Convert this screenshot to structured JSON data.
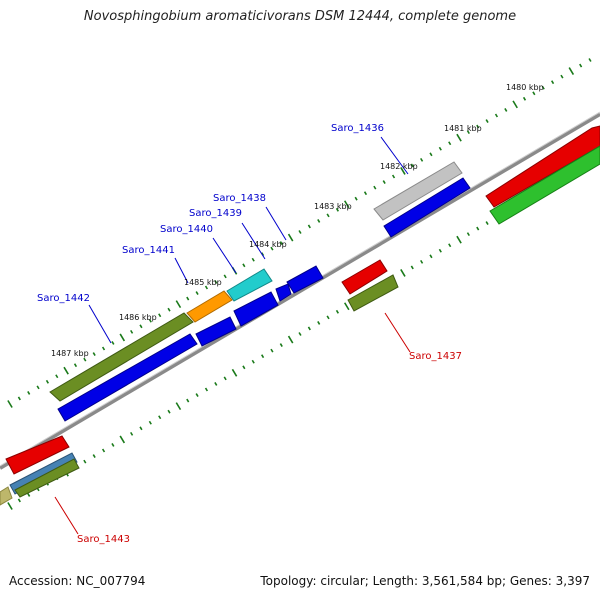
{
  "title": "Novosphingobium aromaticivorans DSM 12444, complete genome",
  "footer": {
    "accession": "Accession: NC_007794",
    "summary": "Topology: circular; Length: 3,561,584 bp; Genes: 3,397"
  },
  "scale_labels": [
    "1480 kbp",
    "1481 kbp",
    "1482 kbp",
    "1483 kbp",
    "1484 kbp",
    "1485 kbp",
    "1486 kbp",
    "1487 kbp"
  ],
  "gene_labels": [
    {
      "name": "Saro_1436",
      "strand": "plus"
    },
    {
      "name": "Saro_1438",
      "strand": "plus"
    },
    {
      "name": "Saro_1439",
      "strand": "plus"
    },
    {
      "name": "Saro_1440",
      "strand": "plus"
    },
    {
      "name": "Saro_1441",
      "strand": "plus"
    },
    {
      "name": "Saro_1442",
      "strand": "plus"
    },
    {
      "name": "Saro_1437",
      "strand": "minus"
    },
    {
      "name": "Saro_1443",
      "strand": "minus"
    }
  ],
  "colors": {
    "plus_label": "#0000cc",
    "minus_label": "#cc0000",
    "backbone": "#888888",
    "tick": "#1a7a1a",
    "red": "#e60000",
    "green": "#2ec02e",
    "blue": "#0000e6",
    "olive": "#6b8e23",
    "gray": "#bdbdbd",
    "orange": "#ff9900",
    "cyan": "#22cccc",
    "steelblue": "#4682b4",
    "khaki": "#bdb76b"
  }
}
